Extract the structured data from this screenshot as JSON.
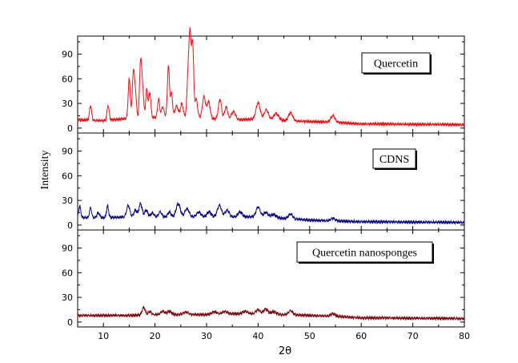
{
  "chart_data": {
    "type": "line",
    "xlabel": "2θ",
    "ylabel": "Intensity",
    "xlim": [
      5,
      80
    ],
    "xticks": [
      10,
      20,
      30,
      40,
      50,
      60,
      70,
      80
    ],
    "ylim": [
      -6,
      112
    ],
    "yticks": [
      0,
      30,
      60,
      90
    ],
    "grid": false,
    "panels": [
      {
        "label": "Quercetin",
        "color": "#e8141c",
        "legend_position": "top-right",
        "peaks": [
          [
            7.5,
            18,
            0.2
          ],
          [
            10.9,
            18,
            0.2
          ],
          [
            15.0,
            48,
            0.2
          ],
          [
            15.8,
            55,
            0.2
          ],
          [
            16.2,
            30,
            0.2
          ],
          [
            17.2,
            68,
            0.2
          ],
          [
            17.6,
            35,
            0.2
          ],
          [
            18.4,
            35,
            0.2
          ],
          [
            19.0,
            30,
            0.2
          ],
          [
            20.7,
            22,
            0.2
          ],
          [
            21.5,
            12,
            0.25
          ],
          [
            22.6,
            62,
            0.2
          ],
          [
            23.2,
            28,
            0.2
          ],
          [
            24.2,
            12,
            0.3
          ],
          [
            25.2,
            15,
            0.25
          ],
          [
            26.4,
            50,
            0.2
          ],
          [
            26.8,
            98,
            0.2
          ],
          [
            27.3,
            90,
            0.2
          ],
          [
            28.0,
            22,
            0.25
          ],
          [
            29.5,
            26,
            0.3
          ],
          [
            30.4,
            20,
            0.3
          ],
          [
            32.6,
            24,
            0.3
          ],
          [
            33.8,
            15,
            0.3
          ],
          [
            35.2,
            10,
            0.4
          ],
          [
            40.0,
            20,
            0.4
          ],
          [
            41.6,
            12,
            0.4
          ],
          [
            43.5,
            8,
            0.5
          ],
          [
            46.3,
            10,
            0.4
          ],
          [
            54.5,
            8,
            0.4
          ]
        ],
        "base": [
          [
            5,
            10
          ],
          [
            10,
            9
          ],
          [
            15,
            12
          ],
          [
            20,
            13
          ],
          [
            25,
            15
          ],
          [
            30,
            12
          ],
          [
            35,
            10
          ],
          [
            40,
            11
          ],
          [
            45,
            9
          ],
          [
            50,
            8
          ],
          [
            55,
            7
          ],
          [
            60,
            5
          ],
          [
            65,
            5
          ],
          [
            70,
            4.5
          ],
          [
            75,
            4.5
          ],
          [
            80,
            4
          ]
        ]
      },
      {
        "label": "CDNS",
        "color": "#0c0a80",
        "legend_position": "top-right",
        "peaks": [
          [
            5.4,
            14,
            0.2
          ],
          [
            7.5,
            12,
            0.2
          ],
          [
            9.0,
            6,
            0.25
          ],
          [
            10.8,
            14,
            0.2
          ],
          [
            14.8,
            14,
            0.3
          ],
          [
            16.2,
            8,
            0.3
          ],
          [
            17.2,
            16,
            0.3
          ],
          [
            18.3,
            8,
            0.3
          ],
          [
            19.5,
            5,
            0.3
          ],
          [
            21.0,
            6,
            0.3
          ],
          [
            22.8,
            6,
            0.3
          ],
          [
            24.5,
            16,
            0.4
          ],
          [
            26.2,
            10,
            0.4
          ],
          [
            28.5,
            6,
            0.4
          ],
          [
            30.5,
            6,
            0.4
          ],
          [
            32.5,
            14,
            0.4
          ],
          [
            34.0,
            8,
            0.4
          ],
          [
            36.5,
            6,
            0.4
          ],
          [
            40.0,
            12,
            0.4
          ],
          [
            41.5,
            6,
            0.4
          ],
          [
            43.0,
            4,
            0.5
          ],
          [
            46.3,
            6,
            0.4
          ],
          [
            54.5,
            3,
            0.4
          ]
        ],
        "base": [
          [
            5,
            9
          ],
          [
            10,
            9
          ],
          [
            15,
            10
          ],
          [
            20,
            10
          ],
          [
            25,
            10
          ],
          [
            30,
            10
          ],
          [
            35,
            10
          ],
          [
            40,
            10
          ],
          [
            45,
            8
          ],
          [
            50,
            6
          ],
          [
            55,
            5
          ],
          [
            60,
            4
          ],
          [
            65,
            4
          ],
          [
            70,
            3.5
          ],
          [
            75,
            3.5
          ],
          [
            80,
            3
          ]
        ]
      },
      {
        "label": "Quercetin nanosponges",
        "color": "#7a0c14",
        "legend_position": "top-right",
        "peaks": [
          [
            17.8,
            9,
            0.3
          ],
          [
            19.0,
            4,
            0.3
          ],
          [
            21.5,
            4,
            0.4
          ],
          [
            22.8,
            4,
            0.4
          ],
          [
            26.0,
            3,
            0.5
          ],
          [
            31.5,
            3,
            0.5
          ],
          [
            33.5,
            3,
            0.5
          ],
          [
            37.5,
            3,
            0.5
          ],
          [
            40.0,
            5,
            0.4
          ],
          [
            41.5,
            6,
            0.4
          ],
          [
            43.0,
            3,
            0.5
          ],
          [
            46.3,
            5,
            0.4
          ],
          [
            54.5,
            3,
            0.4
          ]
        ],
        "base": [
          [
            5,
            8
          ],
          [
            10,
            8
          ],
          [
            15,
            8
          ],
          [
            20,
            9
          ],
          [
            25,
            9
          ],
          [
            30,
            9
          ],
          [
            35,
            10
          ],
          [
            40,
            10
          ],
          [
            45,
            9
          ],
          [
            50,
            8
          ],
          [
            55,
            7
          ],
          [
            60,
            5
          ],
          [
            65,
            5
          ],
          [
            70,
            4.5
          ],
          [
            75,
            4.5
          ],
          [
            80,
            4
          ]
        ]
      }
    ]
  }
}
